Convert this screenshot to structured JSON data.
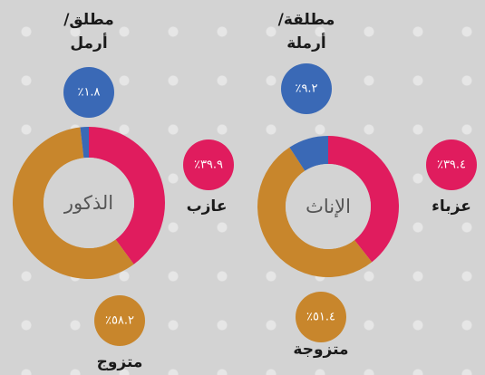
{
  "chart_data": [
    {
      "type": "pie",
      "center_label": "الإناث",
      "categories": [
        "عزباء",
        "متزوجة",
        "مطلقة/ أرملة"
      ],
      "values": [
        39.4,
        51.4,
        9.2
      ],
      "value_labels": [
        "٣٩.٤٪",
        "٥١.٤٪",
        "٩.٢٪"
      ],
      "colors": [
        "#e01c5e",
        "#c8862c",
        "#3a69b6"
      ]
    },
    {
      "type": "pie",
      "center_label": "الذكور",
      "categories": [
        "عازب",
        "متزوج",
        "مطلق/ أرمل"
      ],
      "values": [
        39.9,
        58.2,
        1.8
      ],
      "value_labels": [
        "٣٩.٩٪",
        "٥٨.٢٪",
        "١.٨٪"
      ],
      "colors": [
        "#e01c5e",
        "#c8862c",
        "#3a69b6"
      ]
    }
  ]
}
